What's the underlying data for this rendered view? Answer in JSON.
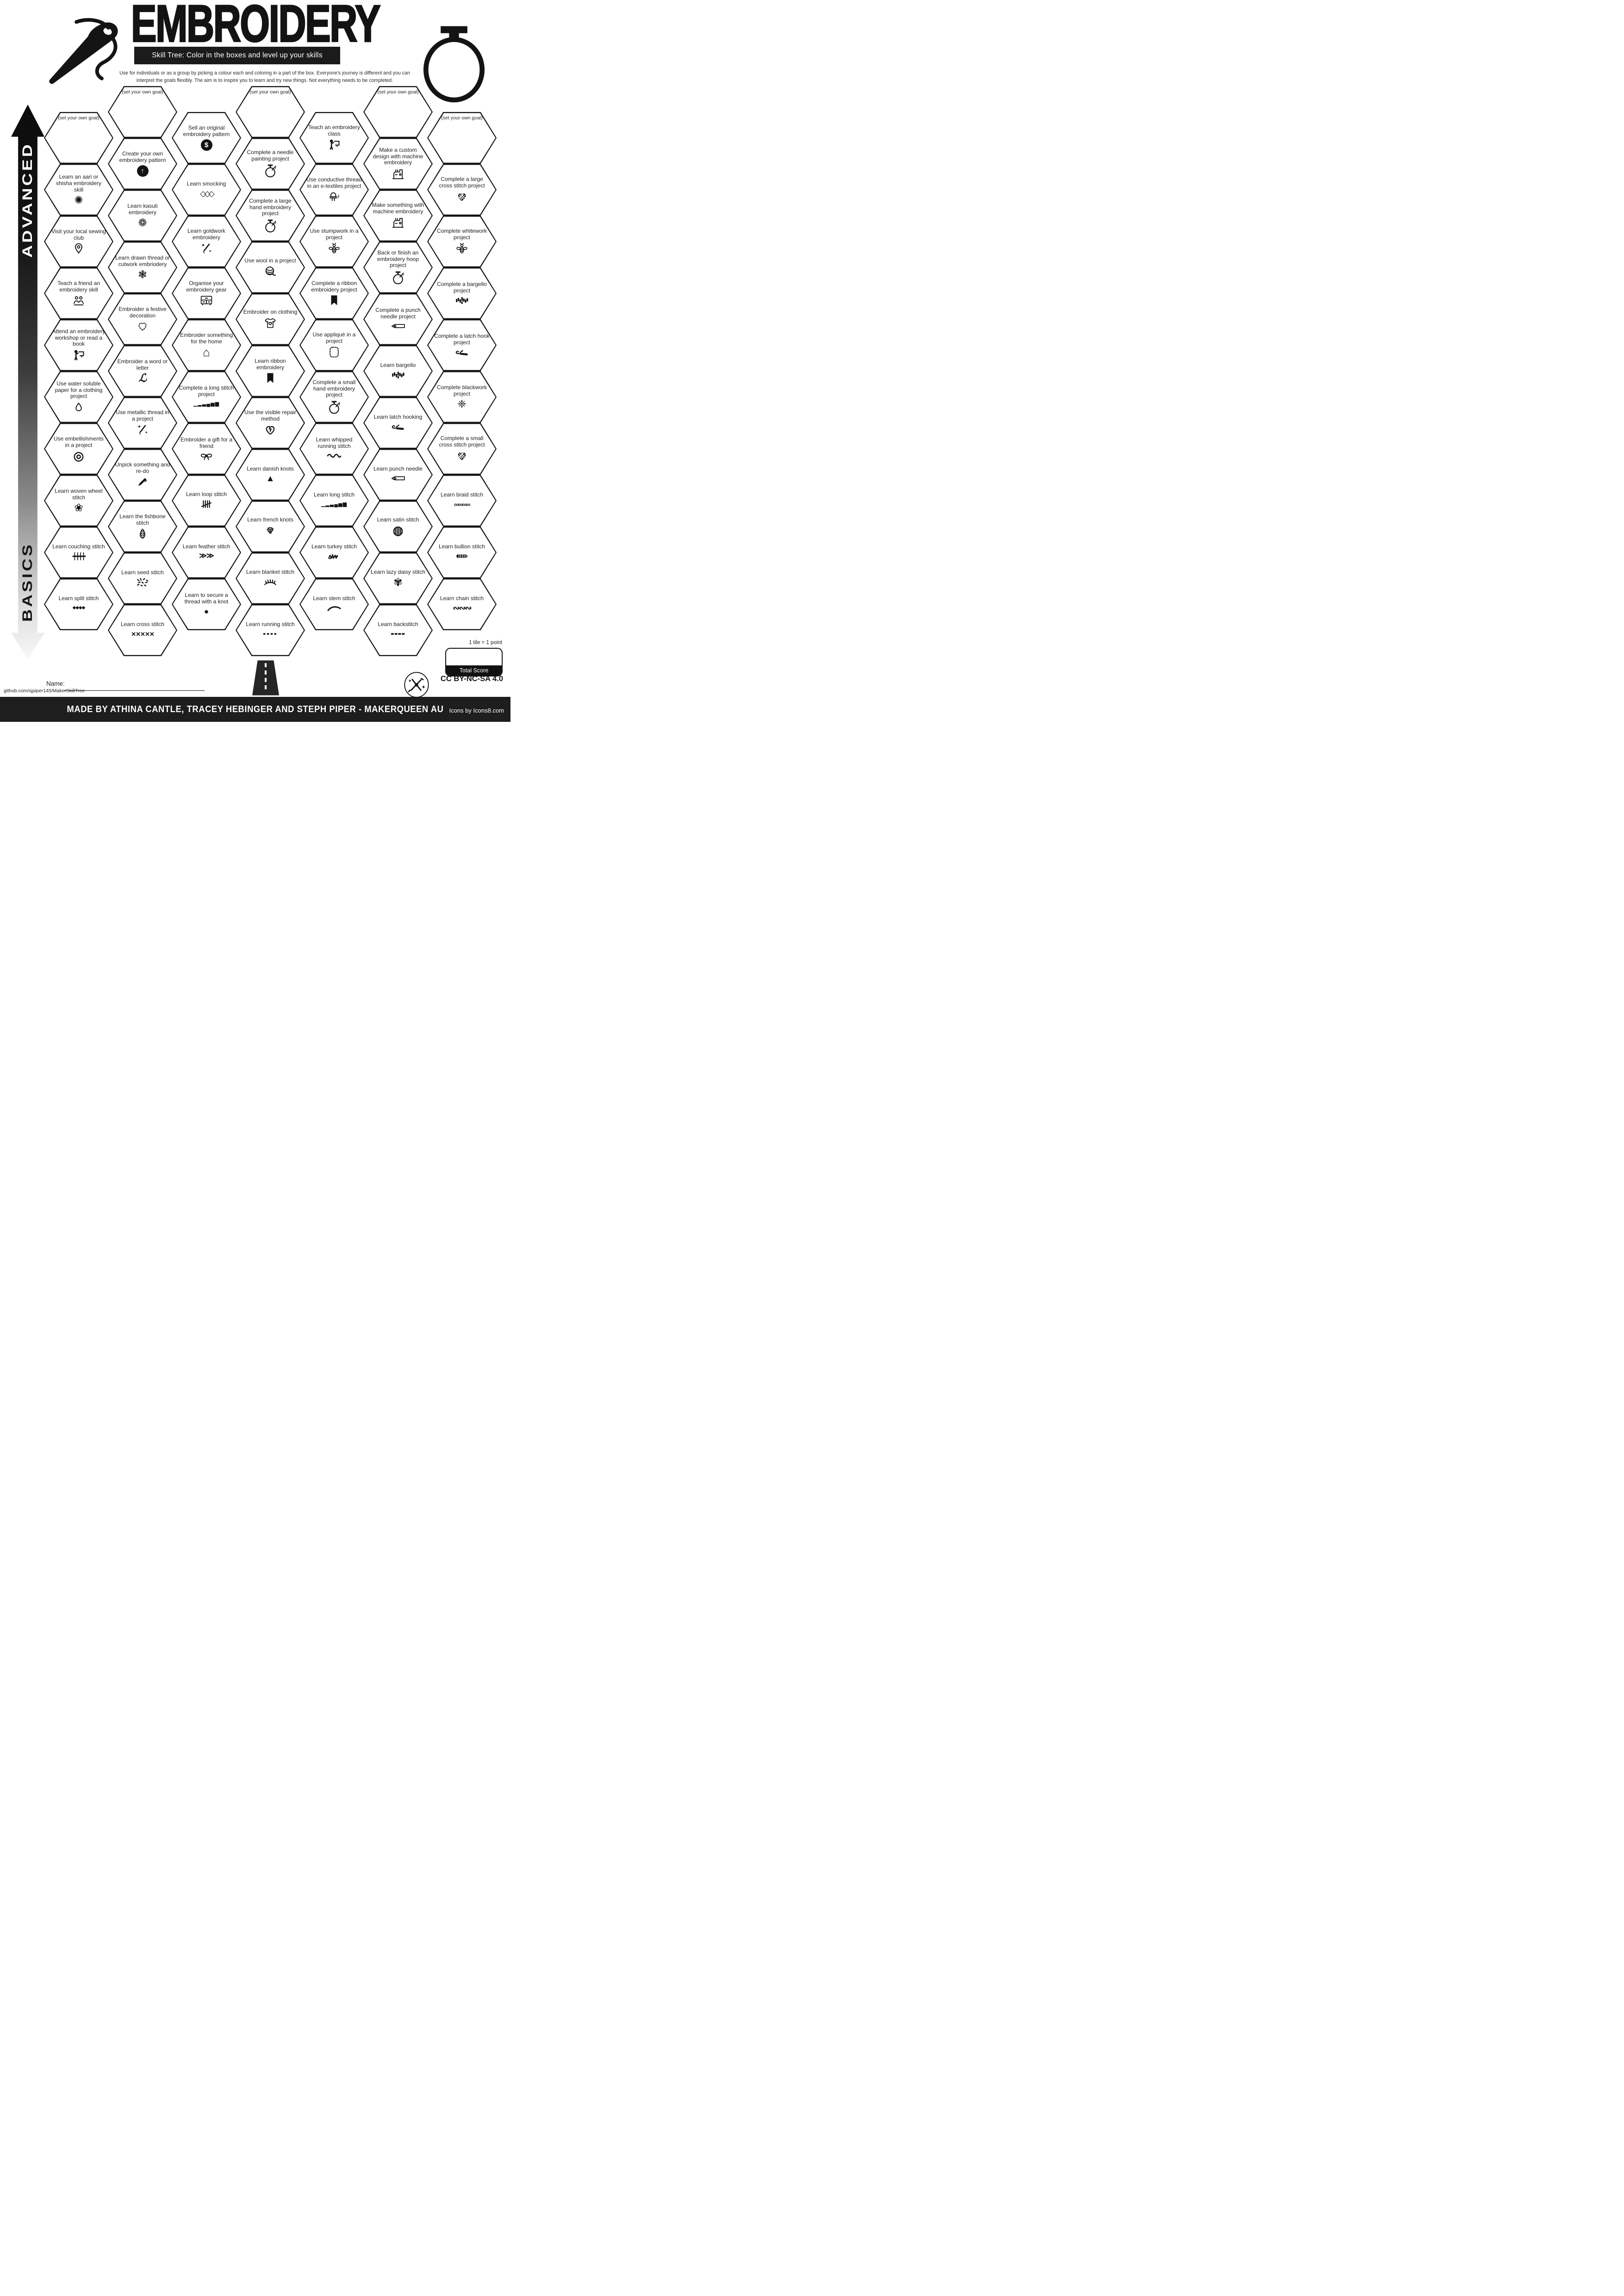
{
  "header": {
    "title": "EMBROIDERY",
    "tagline": "Skill Tree:  Color in the boxes and level up your skills",
    "description": "Use for individuals or as a group by picking a colour each and coloring in a part of the box.  Everyone's journey is different and you can interpret the goals flexibly.  The aim is to inspire you to learn and try new things. Not everything needs to be completed."
  },
  "axis": {
    "top": "ADVANCED",
    "bottom": "BASICS"
  },
  "illustrations": {
    "top_left": "needle-and-thread",
    "top_right": "embroidery-hoop",
    "bottom_center": "road"
  },
  "hexes": [
    {
      "label": "(set your own goal)",
      "icon": null,
      "col": 0,
      "row": 1,
      "goal": true
    },
    {
      "label": "Learn an aari or shisha embroidery skill",
      "icon": "shisha-mirror",
      "col": 0,
      "row": 3
    },
    {
      "label": "Visit your local sewing club",
      "icon": "location-pin",
      "col": 0,
      "row": 5
    },
    {
      "label": "Teach a friend an embroidery skill",
      "icon": "two-friends",
      "col": 0,
      "row": 7
    },
    {
      "label": "Attend an embroidery workshop or read a book",
      "icon": "presenter-board",
      "col": 0,
      "row": 9
    },
    {
      "label": "Use water soluble paper for a clothing project",
      "icon": "water-droplet",
      "col": 0,
      "row": 11
    },
    {
      "label": "Use embellishments in a project",
      "icon": "button",
      "col": 0,
      "row": 13
    },
    {
      "label": "Learn woven wheel stitch",
      "icon": "woven-rose",
      "col": 0,
      "row": 15
    },
    {
      "label": "Learn couching stitch",
      "icon": "couching-line",
      "col": 0,
      "row": 17
    },
    {
      "label": "Learn split stitch",
      "icon": "split-chain",
      "col": 0,
      "row": 19
    },
    {
      "label": "(set your own goal)",
      "icon": null,
      "col": 1,
      "row": 0,
      "goal": true
    },
    {
      "label": "Create your own embroidery pattern",
      "icon": "up-arrow",
      "col": 1,
      "row": 2
    },
    {
      "label": "Learn kasuti embroidery",
      "icon": "kasuti-flower",
      "col": 1,
      "row": 4
    },
    {
      "label": "Learn drawn thread or cutwork embriodery",
      "icon": "cutwork-flower",
      "col": 1,
      "row": 6
    },
    {
      "label": "Embroider a festive decoration",
      "icon": "dashed-heart",
      "col": 1,
      "row": 8
    },
    {
      "label": "Embroider a word or letter",
      "icon": "script-letter",
      "col": 1,
      "row": 10
    },
    {
      "label": "Use metallic thread in a project",
      "icon": "sparkle-needle",
      "col": 1,
      "row": 12
    },
    {
      "label": "Unpick something and re-do",
      "icon": "seam-ripper",
      "col": 1,
      "row": 14
    },
    {
      "label": "Learn the fishbone stitch",
      "icon": "fishbone-leaf",
      "col": 1,
      "row": 16
    },
    {
      "label": "Learn seed stitch",
      "icon": "seed-dashes",
      "col": 1,
      "row": 18
    },
    {
      "label": "Learn cross stitch",
      "icon": "cross-xs",
      "col": 1,
      "row": 20
    },
    {
      "label": "Sell an original embroidery pattern",
      "icon": "dollar",
      "col": 2,
      "row": 1
    },
    {
      "label": "Learn smocking",
      "icon": "smocking-lattice",
      "col": 2,
      "row": 3
    },
    {
      "label": "Learn goldwork embroidery",
      "icon": "sparkle-needle",
      "col": 2,
      "row": 5
    },
    {
      "label": "Organise your embroidery gear",
      "icon": "storage-drawers",
      "col": 2,
      "row": 7
    },
    {
      "label": "Embroider something for the home",
      "icon": "house",
      "col": 2,
      "row": 9
    },
    {
      "label": "Complete a long stitch project",
      "icon": "long-stitch-bars",
      "col": 2,
      "row": 11
    },
    {
      "label": "Embroider a gift for a friend",
      "icon": "gift-bow",
      "col": 2,
      "row": 13
    },
    {
      "label": "Learn loop stitch",
      "icon": "tally-loops",
      "col": 2,
      "row": 15
    },
    {
      "label": "Learn feather stitch",
      "icon": "feather-vs",
      "col": 2,
      "row": 17
    },
    {
      "label": "Learn to secure a thread with a knot",
      "icon": "knot-dot",
      "col": 2,
      "row": 19
    },
    {
      "label": "(set your own goal)",
      "icon": null,
      "col": 3,
      "row": 0,
      "goal": true
    },
    {
      "label": "Complete a needle painting project",
      "icon": "hoop-needle",
      "col": 3,
      "row": 2
    },
    {
      "label": "Complete a large hand embroidery project",
      "icon": "hoop-needle",
      "col": 3,
      "row": 4
    },
    {
      "label": "Use wool in a project",
      "icon": "yarn-ball",
      "col": 3,
      "row": 6
    },
    {
      "label": "Embroider on clothing",
      "icon": "tshirt",
      "col": 3,
      "row": 8
    },
    {
      "label": "Learn ribbon embroidery",
      "icon": "bookmark-ribbon",
      "col": 3,
      "row": 10
    },
    {
      "label": "Use the visible repair method",
      "icon": "mended-heart",
      "col": 3,
      "row": 12
    },
    {
      "label": "Learn danish knots",
      "icon": "triangle-knot",
      "col": 3,
      "row": 14
    },
    {
      "label": "Learn french knots",
      "icon": "french-dots",
      "col": 3,
      "row": 16
    },
    {
      "label": "Learn blanket stitch",
      "icon": "blanket-lashes",
      "col": 3,
      "row": 18
    },
    {
      "label": "Learn running stitch",
      "icon": "running-dashes",
      "col": 3,
      "row": 20
    },
    {
      "label": "Teach an embroidery class",
      "icon": "presenter-board",
      "col": 4,
      "row": 1
    },
    {
      "label": "Use conductive thread in an e-textiles project",
      "icon": "led-bolt",
      "col": 4,
      "row": 3
    },
    {
      "label": "Use stumpwork in a project",
      "icon": "bee",
      "col": 4,
      "row": 5
    },
    {
      "label": "Complete a ribbon embroidery project",
      "icon": "bookmark-ribbon",
      "col": 4,
      "row": 7
    },
    {
      "label": "Use appliqué in a project",
      "icon": "applique-patch",
      "col": 4,
      "row": 9
    },
    {
      "label": "Complete a small hand embroidery project",
      "icon": "hoop-needle",
      "col": 4,
      "row": 11
    },
    {
      "label": "Learn whipped running stitch",
      "icon": "whipped-wave",
      "col": 4,
      "row": 13
    },
    {
      "label": "Learn long stitch",
      "icon": "long-stitch-bars",
      "col": 4,
      "row": 15
    },
    {
      "label": "Learn turkey stitch",
      "icon": "turkey-scribble",
      "col": 4,
      "row": 17
    },
    {
      "label": "Learn stem stitch",
      "icon": "stem-arc",
      "col": 4,
      "row": 19
    },
    {
      "label": "(set your own goal)",
      "icon": null,
      "col": 5,
      "row": 0,
      "goal": true
    },
    {
      "label": "Make a custom design with machine embroidery",
      "icon": "sewing-machine",
      "col": 5,
      "row": 2
    },
    {
      "label": "Make something with machine embroidery",
      "icon": "sewing-machine",
      "col": 5,
      "row": 4
    },
    {
      "label": "Back or finish an embroidery hoop project",
      "icon": "hoop-needle",
      "col": 5,
      "row": 6
    },
    {
      "label": "Complete a punch needle project",
      "icon": "punch-needle-tool",
      "col": 5,
      "row": 8
    },
    {
      "label": "Learn bargello",
      "icon": "bargello-bars",
      "col": 5,
      "row": 10
    },
    {
      "label": "Learn latch hooking",
      "icon": "latch-hook-tool",
      "col": 5,
      "row": 12
    },
    {
      "label": "Learn punch needle",
      "icon": "punch-needle-tool",
      "col": 5,
      "row": 14
    },
    {
      "label": "Learn satin stitch",
      "icon": "satin-circle",
      "col": 5,
      "row": 16
    },
    {
      "label": "Learn lazy daisy stitch",
      "icon": "lazy-daisy",
      "col": 5,
      "row": 18
    },
    {
      "label": "Learn backstitch",
      "icon": "backstitch-dashes",
      "col": 5,
      "row": 20
    },
    {
      "label": "(set your own goal)",
      "icon": null,
      "col": 6,
      "row": 1,
      "goal": true
    },
    {
      "label": "Complete a large cross stitch project",
      "icon": "heart-cross-stitch",
      "col": 6,
      "row": 3
    },
    {
      "label": "Complete whitework project",
      "icon": "bee",
      "col": 6,
      "row": 5
    },
    {
      "label": "Complete a bargello project",
      "icon": "bargello-bars",
      "col": 6,
      "row": 7
    },
    {
      "label": "Complete a latch hook project",
      "icon": "latch-hook-tool",
      "col": 6,
      "row": 9
    },
    {
      "label": "Complete blackwork project",
      "icon": "blackwork-star",
      "col": 6,
      "row": 11
    },
    {
      "label": "Complete a small cross stitch project",
      "icon": "heart-cross-stitch",
      "col": 6,
      "row": 13
    },
    {
      "label": "Learn braid stitch",
      "icon": "braid-loops",
      "col": 6,
      "row": 15
    },
    {
      "label": "Learn bullion stitch",
      "icon": "bullion-coil",
      "col": 6,
      "row": 17
    },
    {
      "label": "Learn chain stitch",
      "icon": "chain-loops",
      "col": 6,
      "row": 19
    }
  ],
  "footer": {
    "name_label": "Name:",
    "github": "github.com/sjpiper145/MakerSkillTree",
    "tile_note": "1 tile = 1 point",
    "total_score": "Total Score",
    "license": "CC BY-NC-SA 4.0",
    "made_by": "MADE BY ATHINA CANTLE, TRACEY HEBINGER AND STEPH PIPER  -  MAKERQUEEN AU",
    "icons_credit": "Icons by Icons8.com"
  }
}
